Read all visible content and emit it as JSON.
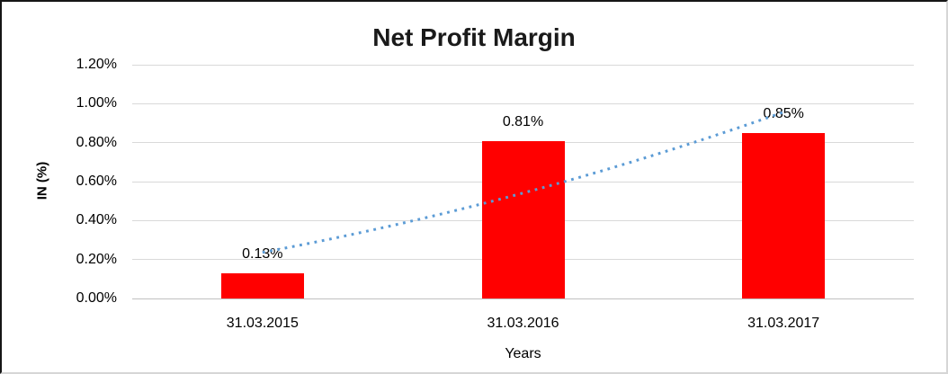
{
  "chart_data": {
    "type": "bar",
    "title": "Net Profit Margin",
    "categories": [
      "31.03.2015",
      "31.03.2016",
      "31.03.2017"
    ],
    "values": [
      0.13,
      0.81,
      0.85
    ],
    "data_labels": [
      "0.13%",
      "0.81%",
      "0.85%"
    ],
    "xlabel": "Years",
    "ylabel": "IN (%)",
    "ylim": [
      0,
      1.2
    ],
    "yticks": [
      "0.00%",
      "0.20%",
      "0.40%",
      "0.60%",
      "0.80%",
      "1.00%",
      "1.20%"
    ],
    "grid": true,
    "legend_position": "none",
    "bar_color": "#ff0000",
    "gridline_color": "#d9d9d9",
    "axis_line_color": "#c0c0c0",
    "text_color": "#000000",
    "title_color": "#1a1a1a",
    "trendline": {
      "style": "dotted",
      "color": "#5b9bd5",
      "description": "dotted linear trend rising from first bar to last bar"
    }
  }
}
